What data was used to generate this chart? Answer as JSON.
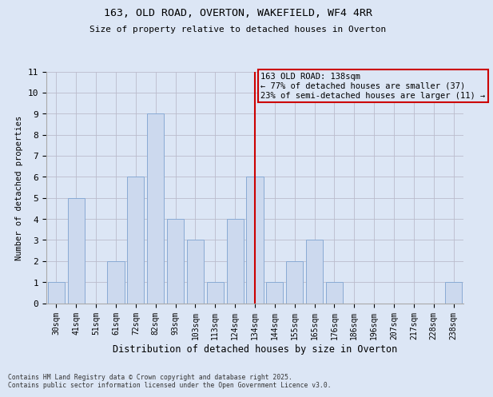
{
  "title1": "163, OLD ROAD, OVERTON, WAKEFIELD, WF4 4RR",
  "title2": "Size of property relative to detached houses in Overton",
  "xlabel": "Distribution of detached houses by size in Overton",
  "ylabel": "Number of detached properties",
  "bar_labels": [
    "30sqm",
    "41sqm",
    "51sqm",
    "61sqm",
    "72sqm",
    "82sqm",
    "93sqm",
    "103sqm",
    "113sqm",
    "124sqm",
    "134sqm",
    "144sqm",
    "155sqm",
    "165sqm",
    "176sqm",
    "186sqm",
    "196sqm",
    "207sqm",
    "217sqm",
    "228sqm",
    "238sqm"
  ],
  "bar_values": [
    1,
    5,
    0,
    2,
    6,
    9,
    4,
    3,
    1,
    4,
    6,
    1,
    2,
    3,
    1,
    0,
    0,
    0,
    0,
    0,
    1
  ],
  "bar_color": "#ccd9ee",
  "bar_edgecolor": "#89aad4",
  "property_line_index": 10,
  "property_line_color": "#cc0000",
  "annotation_text": "163 OLD ROAD: 138sqm\n← 77% of detached houses are smaller (37)\n23% of semi-detached houses are larger (11) →",
  "annotation_box_edgecolor": "#cc0000",
  "ylim": [
    0,
    11
  ],
  "yticks": [
    0,
    1,
    2,
    3,
    4,
    5,
    6,
    7,
    8,
    9,
    10,
    11
  ],
  "footer": "Contains HM Land Registry data © Crown copyright and database right 2025.\nContains public sector information licensed under the Open Government Licence v3.0.",
  "grid_color": "#bbbbcc",
  "bg_color": "#dce6f5"
}
